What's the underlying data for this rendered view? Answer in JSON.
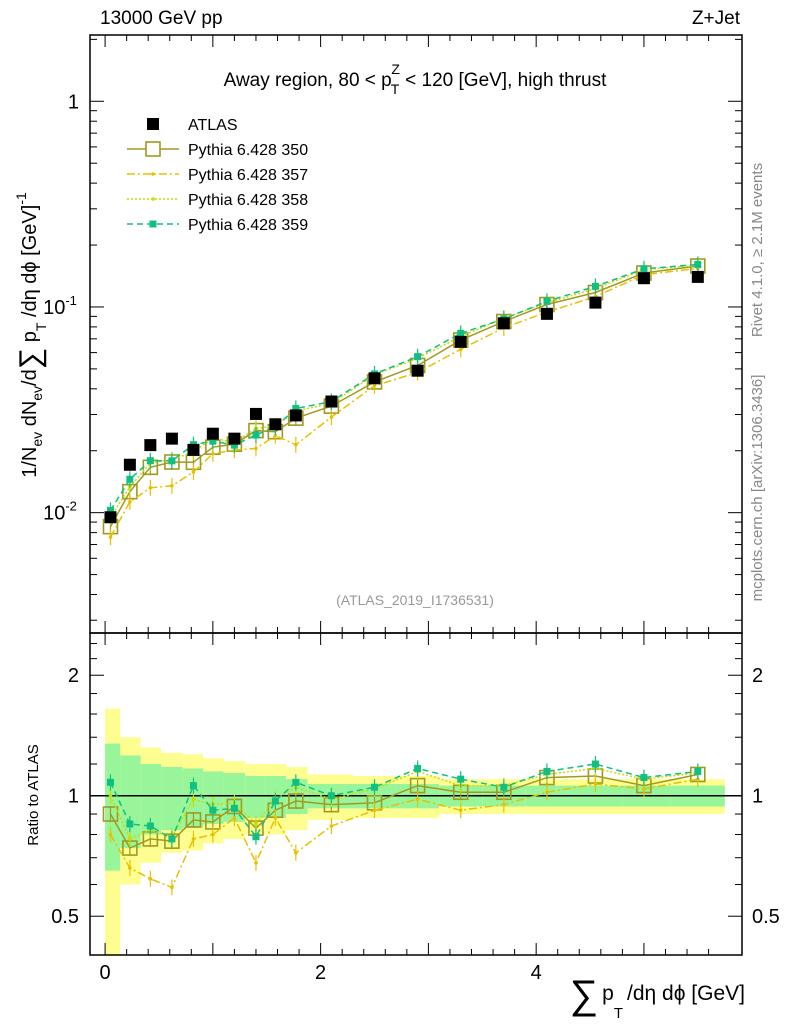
{
  "header": {
    "left": "13000 GeV pp",
    "right": "Z+Jet"
  },
  "side_labels": {
    "rivet": "Rivet 4.1.0, ≥ 2.1M events",
    "mcplots": "mcplots.cern.ch [arXiv:1306.3436]"
  },
  "analysis_id": "(ATLAS_2019_I1736531)",
  "chart_data": {
    "type": "line",
    "title": "Away region, 80 < p_T^Z < 120 [GeV], high thrust",
    "title_parts": {
      "pre": "Away region, 80 < p",
      "sup": "Z",
      "sub": "T",
      "post": " < 120 [GeV], high thrust"
    },
    "xlabel": "∑ p_T /dη dϕ [GeV]",
    "xlabel_parts": {
      "sum": "∑",
      "p": "p",
      "sub": "T",
      "rest": "/dη dϕ [GeV]"
    },
    "ylabel": "1/N_ev dN_ev/d∑ p_T /dη dϕ [GeV]^-1",
    "ylabel_parts": {
      "a": "1/N",
      "ev": "ev",
      "b": " dN",
      "c": "/d",
      "sum": "∑",
      "p": " p",
      "T": "T",
      "d": " /dη dϕ  [GeV]",
      "exp": "-1"
    },
    "ratio_ylabel": "Ratio to ATLAS",
    "xlim": [
      -0.14,
      5.91
    ],
    "ylim": [
      0.0026,
      2.1
    ],
    "yscale": "log",
    "ratio_ylim": [
      0.4,
      2.55
    ],
    "x_ticks": [
      "0",
      "2",
      "4"
    ],
    "y_ticks": [
      "10^-2",
      "10^-1",
      "1"
    ],
    "ratio_ticks": [
      "0.5",
      "1",
      "2"
    ],
    "x": [
      0.05,
      0.23,
      0.42,
      0.62,
      0.82,
      1.0,
      1.2,
      1.4,
      1.58,
      1.77,
      2.1,
      2.5,
      2.9,
      3.3,
      3.7,
      4.1,
      4.55,
      5.0,
      5.5
    ],
    "bin_edges": [
      0,
      0.14,
      0.33,
      0.52,
      0.72,
      0.91,
      1.1,
      1.3,
      1.49,
      1.68,
      1.88,
      2.3,
      2.7,
      3.1,
      3.5,
      3.9,
      4.3,
      4.8,
      5.25,
      5.75
    ],
    "atlas": [
      0.0095,
      0.0171,
      0.0213,
      0.0229,
      0.0202,
      0.0242,
      0.0229,
      0.0302,
      0.0269,
      0.0297,
      0.0347,
      0.045,
      0.049,
      0.0677,
      0.0833,
      0.0926,
      0.105,
      0.138,
      0.14
    ],
    "band_yellow": [
      0.65,
      0.4,
      0.32,
      0.28,
      0.27,
      0.24,
      0.22,
      0.2,
      0.2,
      0.18,
      0.13,
      0.12,
      0.12,
      0.1,
      0.1,
      0.1,
      0.1,
      0.1,
      0.1
    ],
    "band_green": [
      0.35,
      0.26,
      0.2,
      0.18,
      0.17,
      0.15,
      0.14,
      0.12,
      0.12,
      0.1,
      0.07,
      0.07,
      0.07,
      0.06,
      0.06,
      0.06,
      0.06,
      0.06,
      0.06
    ],
    "series": [
      {
        "name": "ATLAS",
        "color": "#000000"
      },
      {
        "name": "Pythia 6.428 350",
        "color": "#a09a20",
        "style": "solid",
        "marker": "open-square",
        "ratio": [
          0.9,
          0.74,
          0.78,
          0.77,
          0.87,
          0.86,
          0.94,
          0.83,
          0.92,
          0.97,
          0.95,
          0.96,
          1.06,
          1.02,
          1.02,
          1.11,
          1.12,
          1.06,
          1.13
        ]
      },
      {
        "name": "Pythia 6.428 357",
        "color": "#e8c000",
        "style": "dashdot",
        "marker": "dot",
        "ratio": [
          0.8,
          0.66,
          0.62,
          0.59,
          0.78,
          0.8,
          0.88,
          0.68,
          0.88,
          0.72,
          0.84,
          0.92,
          0.98,
          0.92,
          0.95,
          1.02,
          1.07,
          1.04,
          1.1
        ]
      },
      {
        "name": "Pythia 6.428 358",
        "color": "#c8dc00",
        "style": "dotted",
        "marker": "dot",
        "ratio": [
          1.0,
          0.78,
          0.82,
          0.79,
          0.98,
          0.95,
          0.96,
          0.85,
          0.98,
          1.05,
          0.98,
          1.04,
          1.15,
          1.06,
          1.06,
          1.13,
          1.17,
          1.1,
          1.14
        ]
      },
      {
        "name": "Pythia 6.428 359",
        "color": "#10c080",
        "style": "dashed",
        "marker": "filled-square",
        "ratio": [
          1.08,
          0.85,
          0.84,
          0.78,
          1.06,
          0.92,
          0.93,
          0.79,
          0.97,
          1.08,
          1.0,
          1.05,
          1.17,
          1.1,
          1.05,
          1.15,
          1.2,
          1.11,
          1.15
        ]
      }
    ]
  }
}
